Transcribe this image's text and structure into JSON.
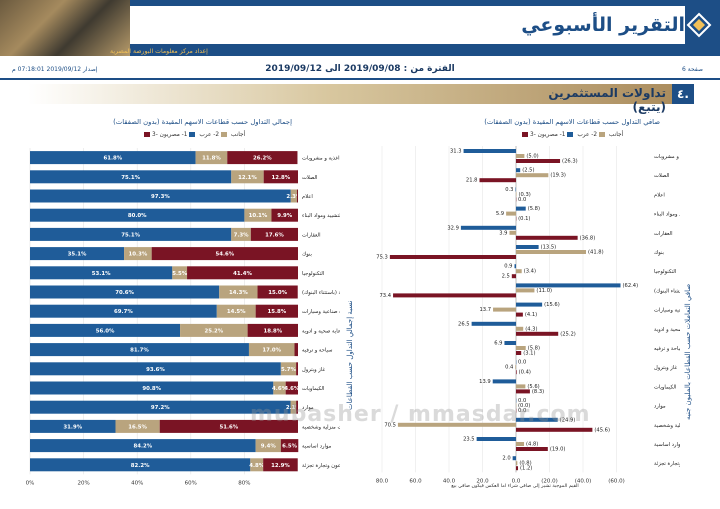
{
  "header": {
    "title": "التقرير الأسبوعي",
    "subtitle": "إعداد مركز معلومات البورصة المصرية"
  },
  "period": {
    "label": "الفترة من : 2019/09/08 الى 2019/09/12",
    "page": "صفحة 6",
    "release": "إصدار 2019/09/12 07:18:01 م"
  },
  "section": {
    "number": "٤.",
    "title": "تداولات المستثمرين (يتبع)"
  },
  "colors": {
    "egyptians": "#1f5c99",
    "arabs": "#b9a47e",
    "foreigners": "#7a1424",
    "navy": "#1d4e86"
  },
  "left_chart": {
    "title": "إجمالي التداول حسب قطاعات الاسهم المقيدة (بدون الصفقات)",
    "legend": [
      "1- مصريون",
      "2- عرب",
      "3- أجانب"
    ],
    "side_label": "نسبة إجمالي التداول حسب القطاعات"
  },
  "right_chart": {
    "title": "صافي التداول حسب قطاعات الاسهم المقيدة (بدون الصفقات)",
    "legend": [
      "1- مصريون",
      "2- عرب",
      "3- أجانب"
    ],
    "side_label": "صافي التعاملات حسب القطاعات بالمليون جنيه"
  },
  "footnote": "القيم الموجبة تشير إلى صافي شراء اما العكس فيكون صافي بيع",
  "watermark": "mubasher / mmasdar.com",
  "chart_data": [
    {
      "type": "bar",
      "title": "إجمالي التداول حسب قطاعات الاسهم المقيدة (بدون الصفقات)",
      "orientation": "horizontal-stacked-percent",
      "categories": [
        "اغذية و مشروبات",
        "الصلات",
        "اعلام",
        "التشييد ومواد البناء",
        "العقارات",
        "بنوك",
        "التكنولوجيا",
        "خدمات مالية (باستثناء البنوك)",
        "خدمات ومنتجات صناعية وسيارات",
        "رعاية صحية و ادوية",
        "سياحة و ترفيه",
        "غاز وبترول",
        "الكيماويات",
        "موارد",
        "منتجات منزلية وشخصية",
        "موارد اساسية",
        "موزعون وتجارة تجزئة"
      ],
      "series": [
        {
          "name": "1- مصريون",
          "values": [
            61.8,
            75.1,
            97.3,
            80.0,
            75.1,
            35.1,
            53.1,
            70.6,
            69.7,
            56.0,
            81.7,
            93.6,
            90.8,
            97.2,
            31.9,
            84.2,
            82.2
          ]
        },
        {
          "name": "2- عرب",
          "values": [
            11.8,
            12.1,
            2.3,
            10.1,
            7.3,
            10.3,
            5.5,
            14.3,
            14.5,
            25.2,
            17.0,
            5.7,
            4.6,
            2.1,
            16.5,
            9.4,
            4.8
          ]
        },
        {
          "name": "3- أجانب",
          "values": [
            26.2,
            12.8,
            0.4,
            9.9,
            17.6,
            54.6,
            41.4,
            15.0,
            15.8,
            18.8,
            1.3,
            0.7,
            4.6,
            0.7,
            51.6,
            6.5,
            12.9
          ]
        }
      ],
      "xticks": [
        "0%",
        "20%",
        "40%",
        "60%",
        "80%"
      ],
      "xlim": [
        0,
        100
      ]
    },
    {
      "type": "bar",
      "title": "صافي التداول حسب قطاعات الاسهم المقيدة (بدون الصفقات)",
      "orientation": "horizontal-grouped",
      "categories": [
        "اغذية و مشروبات",
        "الصلات",
        "اعلام",
        "التشييد ومواد البناء",
        "العقارات",
        "بنوك",
        "التكنولوجيا",
        "خدمات مالية (باستثناء البنوك)",
        "خدمات ومنتجات صناعية وسيارات",
        "رعاية صحية و ادوية",
        "سياحة و ترفيه",
        "غاز وبترول",
        "الكيماويات",
        "موارد",
        "منتجات منزلية وشخصية",
        "موارد اساسية",
        "موزعون وتجارة تجزئة"
      ],
      "series": [
        {
          "name": "1- مصريون",
          "values": [
            31.3,
            -2.5,
            0.3,
            -5.8,
            32.9,
            -13.5,
            0.9,
            -62.4,
            -15.6,
            26.5,
            6.9,
            0.0,
            13.9,
            0.0,
            -24.9,
            23.5,
            2.0
          ]
        },
        {
          "name": "2- عرب",
          "values": [
            -5.0,
            -19.3,
            -0.3,
            5.9,
            3.9,
            -41.8,
            -3.4,
            -11.0,
            13.7,
            -4.3,
            -5.8,
            0.4,
            -5.6,
            -0.0,
            70.5,
            -4.8,
            -0.8
          ]
        },
        {
          "name": "3- أجانب",
          "values": [
            -26.3,
            21.8,
            0.0,
            -0.1,
            -36.8,
            75.3,
            2.5,
            73.4,
            -4.1,
            -25.2,
            -3.1,
            -0.4,
            -8.3,
            0.0,
            -45.6,
            -19.0,
            -1.2
          ]
        }
      ],
      "value_labels": [
        [
          "31.3",
          "(5.0)",
          "(26.3)"
        ],
        [
          "(2.5)",
          "(19.3)",
          "21.8"
        ],
        [
          "0.3",
          "(0.3)",
          "0.0"
        ],
        [
          "(5.8)",
          "5.9",
          "(0.1)"
        ],
        [
          "32.9",
          "3.9",
          "(36.8)"
        ],
        [
          "(13.5)",
          "(41.8)",
          "75.3"
        ],
        [
          "0.9",
          "(3.4)",
          "2.5"
        ],
        [
          "(62.4)",
          "(11.0)",
          "73.4"
        ],
        [
          "(15.6)",
          "13.7",
          "(4.1)"
        ],
        [
          "26.5",
          "(4.3)",
          "(25.2)"
        ],
        [
          "6.9",
          "(5.8)",
          "(3.1)"
        ],
        [
          "0.0",
          "0.4",
          "(0.4)"
        ],
        [
          "13.9",
          "(5.6)",
          "(8.3)"
        ],
        [
          "0.0",
          "(0.0)",
          "0.0"
        ],
        [
          "(24.9)",
          "70.5",
          "(45.6)"
        ],
        [
          "23.5",
          "(4.8)",
          "(19.0)"
        ],
        [
          "2.0",
          "(0.8)",
          "(1.2)"
        ]
      ],
      "xticks": [
        "80.0",
        "60.0",
        "40.0",
        "20.0",
        "0.0",
        "(20.0)",
        "(40.0)",
        "(60.0)"
      ],
      "xlim": [
        -80,
        80
      ],
      "x_reversed": true
    }
  ]
}
